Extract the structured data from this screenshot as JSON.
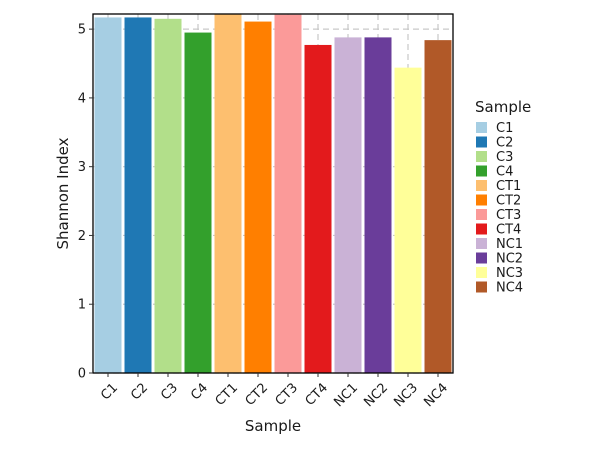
{
  "chart_data": {
    "type": "bar",
    "title": "",
    "xlabel": "Sample",
    "ylabel": "Shannon Index",
    "categories": [
      "C1",
      "C2",
      "C3",
      "C4",
      "CT1",
      "CT2",
      "CT3",
      "CT4",
      "NC1",
      "NC2",
      "NC3",
      "NC4"
    ],
    "values": [
      5.17,
      5.17,
      5.15,
      4.95,
      5.22,
      5.11,
      5.21,
      4.77,
      4.88,
      4.88,
      4.44,
      4.84
    ],
    "colors": [
      "#A6CEE3",
      "#1F78B4",
      "#B2DF8A",
      "#33A02C",
      "#FDBF6F",
      "#FF7F00",
      "#FB9A99",
      "#E31A1C",
      "#CAB2D6",
      "#6A3D9A",
      "#FFFF99",
      "#B15928"
    ],
    "yticks": [
      0,
      1,
      2,
      3,
      4,
      5
    ],
    "ylim": [
      0,
      5.22
    ],
    "grid": "dashed-major",
    "legend": {
      "title": "Sample",
      "position": "right",
      "entries": [
        "C1",
        "C2",
        "C3",
        "C4",
        "CT1",
        "CT2",
        "CT3",
        "CT4",
        "NC1",
        "NC2",
        "NC3",
        "NC4"
      ]
    }
  }
}
